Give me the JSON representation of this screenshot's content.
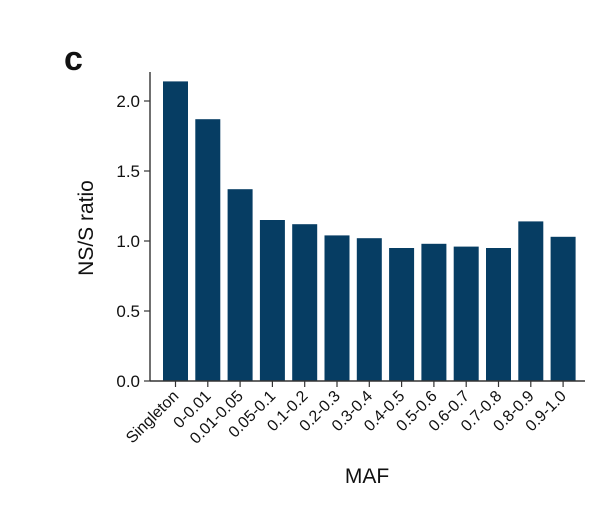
{
  "panel_letter": "c",
  "chart_data": {
    "type": "bar",
    "categories": [
      "Singleton",
      "0-0.01",
      "0.01-0.05",
      "0.05-0.1",
      "0.1-0.2",
      "0.2-0.3",
      "0.3-0.4",
      "0.4-0.5",
      "0.5-0.6",
      "0.6-0.7",
      "0.7-0.8",
      "0.8-0.9",
      "0.9-1.0"
    ],
    "values": [
      2.14,
      1.87,
      1.37,
      1.15,
      1.12,
      1.04,
      1.02,
      0.95,
      0.98,
      0.96,
      0.95,
      1.14,
      1.03
    ],
    "xlabel": "MAF",
    "ylabel": "NS/S ratio",
    "ylim": [
      0,
      2.25
    ],
    "yticks": [
      "0.0",
      "0.5",
      "1.0",
      "1.5",
      "2.0"
    ],
    "bar_color": "#063d63",
    "grid": false,
    "legend": "none"
  }
}
